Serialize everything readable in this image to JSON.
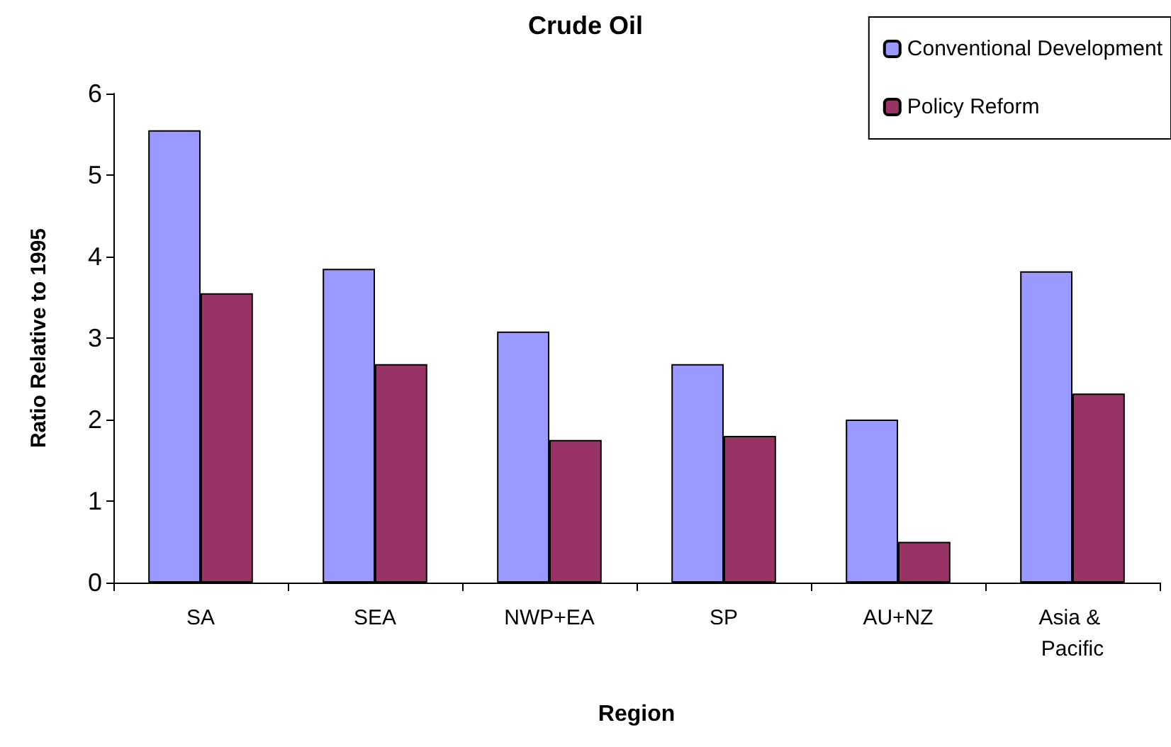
{
  "chart_data": {
    "type": "bar",
    "title": "Crude Oil",
    "xlabel": "Region",
    "ylabel": "Ratio Relative to 1995",
    "categories": [
      "SA",
      "SEA",
      "NWP+EA",
      "SP",
      "AU+NZ",
      "Asia & Pacific"
    ],
    "series": [
      {
        "name": "Conventional Development",
        "color": "#9999ff",
        "values": [
          5.55,
          3.85,
          3.08,
          2.68,
          2.0,
          3.82
        ]
      },
      {
        "name": "Policy Reform",
        "color": "#993366",
        "values": [
          3.55,
          2.68,
          1.75,
          1.8,
          0.5,
          2.32
        ]
      }
    ],
    "ylim": [
      0,
      6
    ],
    "yticks": [
      0,
      1,
      2,
      3,
      4,
      5,
      6
    ],
    "grid": false,
    "legend": "top right"
  }
}
